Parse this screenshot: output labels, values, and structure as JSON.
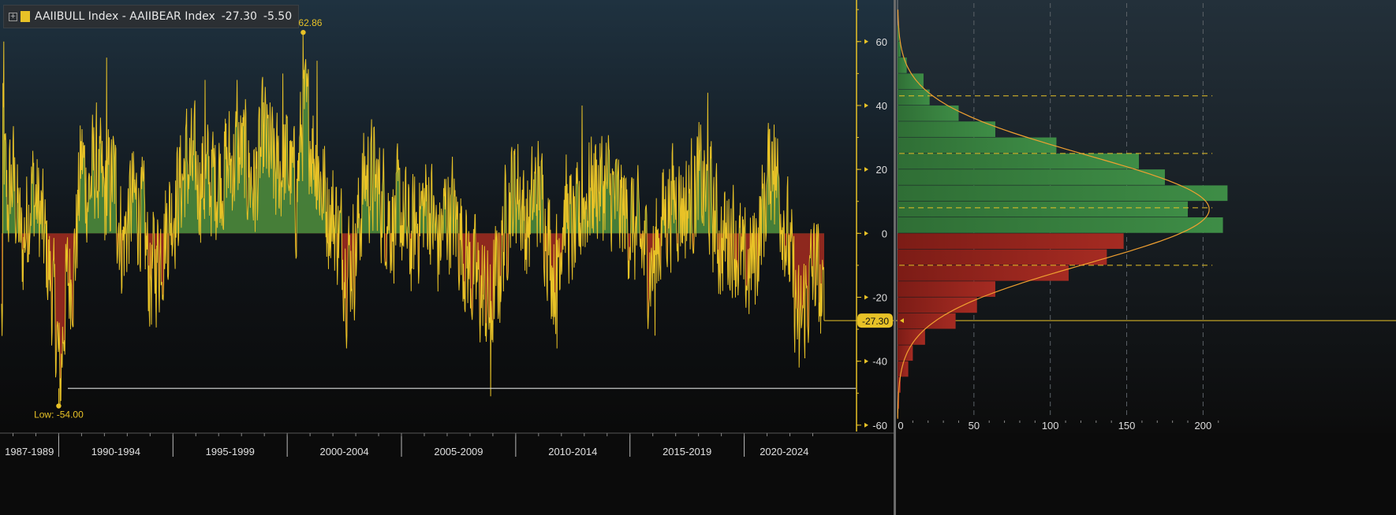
{
  "legend": {
    "label": "AAIIBULL Index - AAIIBEAR Index",
    "value_last": "-27.30",
    "value_change": "-5.50",
    "color": "#e8c227"
  },
  "colors": {
    "line": "#e8c227",
    "positive_fill": "#4c8a3c",
    "negative_fill": "#9c2a1f",
    "hist_positive": "#3e8d46",
    "hist_negative": "#a52b22",
    "axis": "#e8c227",
    "curve": "#f0a030"
  },
  "annotations": {
    "hi_label": "Hi: 62.86",
    "low_label": "Low: -54.00",
    "last_badge": "-27.30"
  },
  "chart_data": [
    {
      "type": "area",
      "series": [
        {
          "name": "AAIIBULL Index - AAIIBEAR Index"
        }
      ],
      "x_start": 1987.5,
      "x_end": 2023.5,
      "high": {
        "x": 2000.7,
        "y": 62.86
      },
      "low": {
        "x": 1990.0,
        "y": -54.0
      },
      "last": -27.3,
      "reference_line": -48.5,
      "ylim": [
        -62,
        73
      ],
      "y_ticks": [
        60,
        40,
        20,
        0,
        -20,
        -40,
        -60
      ],
      "x_period_labels": [
        "1987-1989",
        "1990-1994",
        "1995-1999",
        "2000-2004",
        "2005-2009",
        "2010-2014",
        "2015-2019",
        "2020-2024"
      ],
      "x_period_starts": [
        1987,
        1990,
        1995,
        2000,
        2005,
        2010,
        2015,
        2020
      ],
      "x_period_ends": [
        1990,
        1995,
        2000,
        2005,
        2010,
        2015,
        2020,
        2023.5
      ],
      "anchors": [
        [
          1987.55,
          30
        ],
        [
          1987.75,
          8
        ],
        [
          1988.0,
          18
        ],
        [
          1988.4,
          -6
        ],
        [
          1988.8,
          15
        ],
        [
          1989.2,
          5
        ],
        [
          1989.6,
          -12
        ],
        [
          1989.9,
          -30
        ],
        [
          1990.05,
          -48
        ],
        [
          1990.3,
          -18
        ],
        [
          1990.7,
          -8
        ],
        [
          1991.0,
          24
        ],
        [
          1991.3,
          12
        ],
        [
          1991.6,
          22
        ],
        [
          1992.0,
          10
        ],
        [
          1992.4,
          18
        ],
        [
          1992.8,
          -4
        ],
        [
          1993.2,
          10
        ],
        [
          1993.6,
          8
        ],
        [
          1994.0,
          -14
        ],
        [
          1994.4,
          -6
        ],
        [
          1994.8,
          4
        ],
        [
          1995.2,
          12
        ],
        [
          1995.6,
          22
        ],
        [
          1996.0,
          18
        ],
        [
          1996.5,
          16
        ],
        [
          1997.0,
          18
        ],
        [
          1997.5,
          22
        ],
        [
          1998.0,
          25
        ],
        [
          1998.6,
          14
        ],
        [
          1999.0,
          30
        ],
        [
          1999.5,
          18
        ],
        [
          2000.0,
          22
        ],
        [
          2000.4,
          12
        ],
        [
          2000.7,
          38
        ],
        [
          2001.0,
          32
        ],
        [
          2001.4,
          18
        ],
        [
          2001.8,
          8
        ],
        [
          2002.2,
          2
        ],
        [
          2002.6,
          -10
        ],
        [
          2003.0,
          -5
        ],
        [
          2003.4,
          18
        ],
        [
          2003.8,
          16
        ],
        [
          2004.2,
          10
        ],
        [
          2004.6,
          4
        ],
        [
          2005.0,
          6
        ],
        [
          2005.4,
          -4
        ],
        [
          2005.8,
          6
        ],
        [
          2006.2,
          10
        ],
        [
          2006.6,
          -4
        ],
        [
          2007.0,
          8
        ],
        [
          2007.5,
          2
        ],
        [
          2008.0,
          -12
        ],
        [
          2008.5,
          -18
        ],
        [
          2008.9,
          -24
        ],
        [
          2009.3,
          -10
        ],
        [
          2009.7,
          10
        ],
        [
          2010.1,
          16
        ],
        [
          2010.5,
          0
        ],
        [
          2010.9,
          14
        ],
        [
          2011.3,
          6
        ],
        [
          2011.7,
          -14
        ],
        [
          2012.1,
          8
        ],
        [
          2012.6,
          -2
        ],
        [
          2013.0,
          10
        ],
        [
          2013.5,
          16
        ],
        [
          2014.0,
          14
        ],
        [
          2014.5,
          8
        ],
        [
          2015.0,
          4
        ],
        [
          2015.5,
          -4
        ],
        [
          2016.0,
          -10
        ],
        [
          2016.5,
          6
        ],
        [
          2017.0,
          12
        ],
        [
          2017.5,
          8
        ],
        [
          2018.0,
          16
        ],
        [
          2018.5,
          10
        ],
        [
          2019.0,
          -4
        ],
        [
          2019.5,
          2
        ],
        [
          2020.0,
          -14
        ],
        [
          2020.5,
          -6
        ],
        [
          2020.9,
          10
        ],
        [
          2021.2,
          24
        ],
        [
          2021.6,
          12
        ],
        [
          2022.0,
          -8
        ],
        [
          2022.4,
          -30
        ],
        [
          2022.8,
          -18
        ],
        [
          2023.1,
          -10
        ],
        [
          2023.5,
          -27.3
        ]
      ],
      "spikes": [
        [
          1987.6,
          60
        ],
        [
          1990.05,
          -54
        ],
        [
          1992.1,
          55
        ],
        [
          1996.4,
          48
        ],
        [
          1997.8,
          48
        ],
        [
          1999.8,
          50
        ],
        [
          2000.7,
          62.86
        ],
        [
          2001.3,
          54
        ],
        [
          2002.6,
          -36
        ],
        [
          2008.9,
          -51
        ],
        [
          2009.3,
          -28
        ],
        [
          2011.8,
          -36
        ],
        [
          2012.9,
          40
        ],
        [
          2016.1,
          -32
        ],
        [
          2018.4,
          44
        ],
        [
          2021.3,
          34
        ],
        [
          2022.4,
          -42
        ]
      ]
    },
    {
      "type": "bar",
      "orientation": "horizontal",
      "bins": [
        [
          60,
          65,
          1
        ],
        [
          55,
          60,
          2
        ],
        [
          50,
          55,
          6
        ],
        [
          45,
          50,
          17
        ],
        [
          40,
          45,
          21
        ],
        [
          35,
          40,
          40
        ],
        [
          30,
          35,
          64
        ],
        [
          25,
          30,
          104
        ],
        [
          20,
          25,
          158
        ],
        [
          15,
          20,
          175
        ],
        [
          10,
          15,
          216
        ],
        [
          5,
          10,
          190
        ],
        [
          0,
          5,
          213
        ],
        [
          -5,
          0,
          148
        ],
        [
          -10,
          -5,
          137
        ],
        [
          -15,
          -10,
          112
        ],
        [
          -20,
          -15,
          64
        ],
        [
          -25,
          -20,
          52
        ],
        [
          -30,
          -25,
          38
        ],
        [
          -35,
          -30,
          18
        ],
        [
          -40,
          -35,
          10
        ],
        [
          -45,
          -40,
          7
        ],
        [
          -50,
          -45,
          2
        ],
        [
          -55,
          -50,
          1
        ]
      ],
      "xlim": [
        0,
        222
      ],
      "x_ticks": [
        0,
        50,
        100,
        150,
        200
      ],
      "dashed_levels": [
        43,
        25,
        8,
        -10,
        -27.3
      ],
      "normal_curve": {
        "mean": 7.5,
        "std": 17,
        "peak": 204
      }
    }
  ]
}
